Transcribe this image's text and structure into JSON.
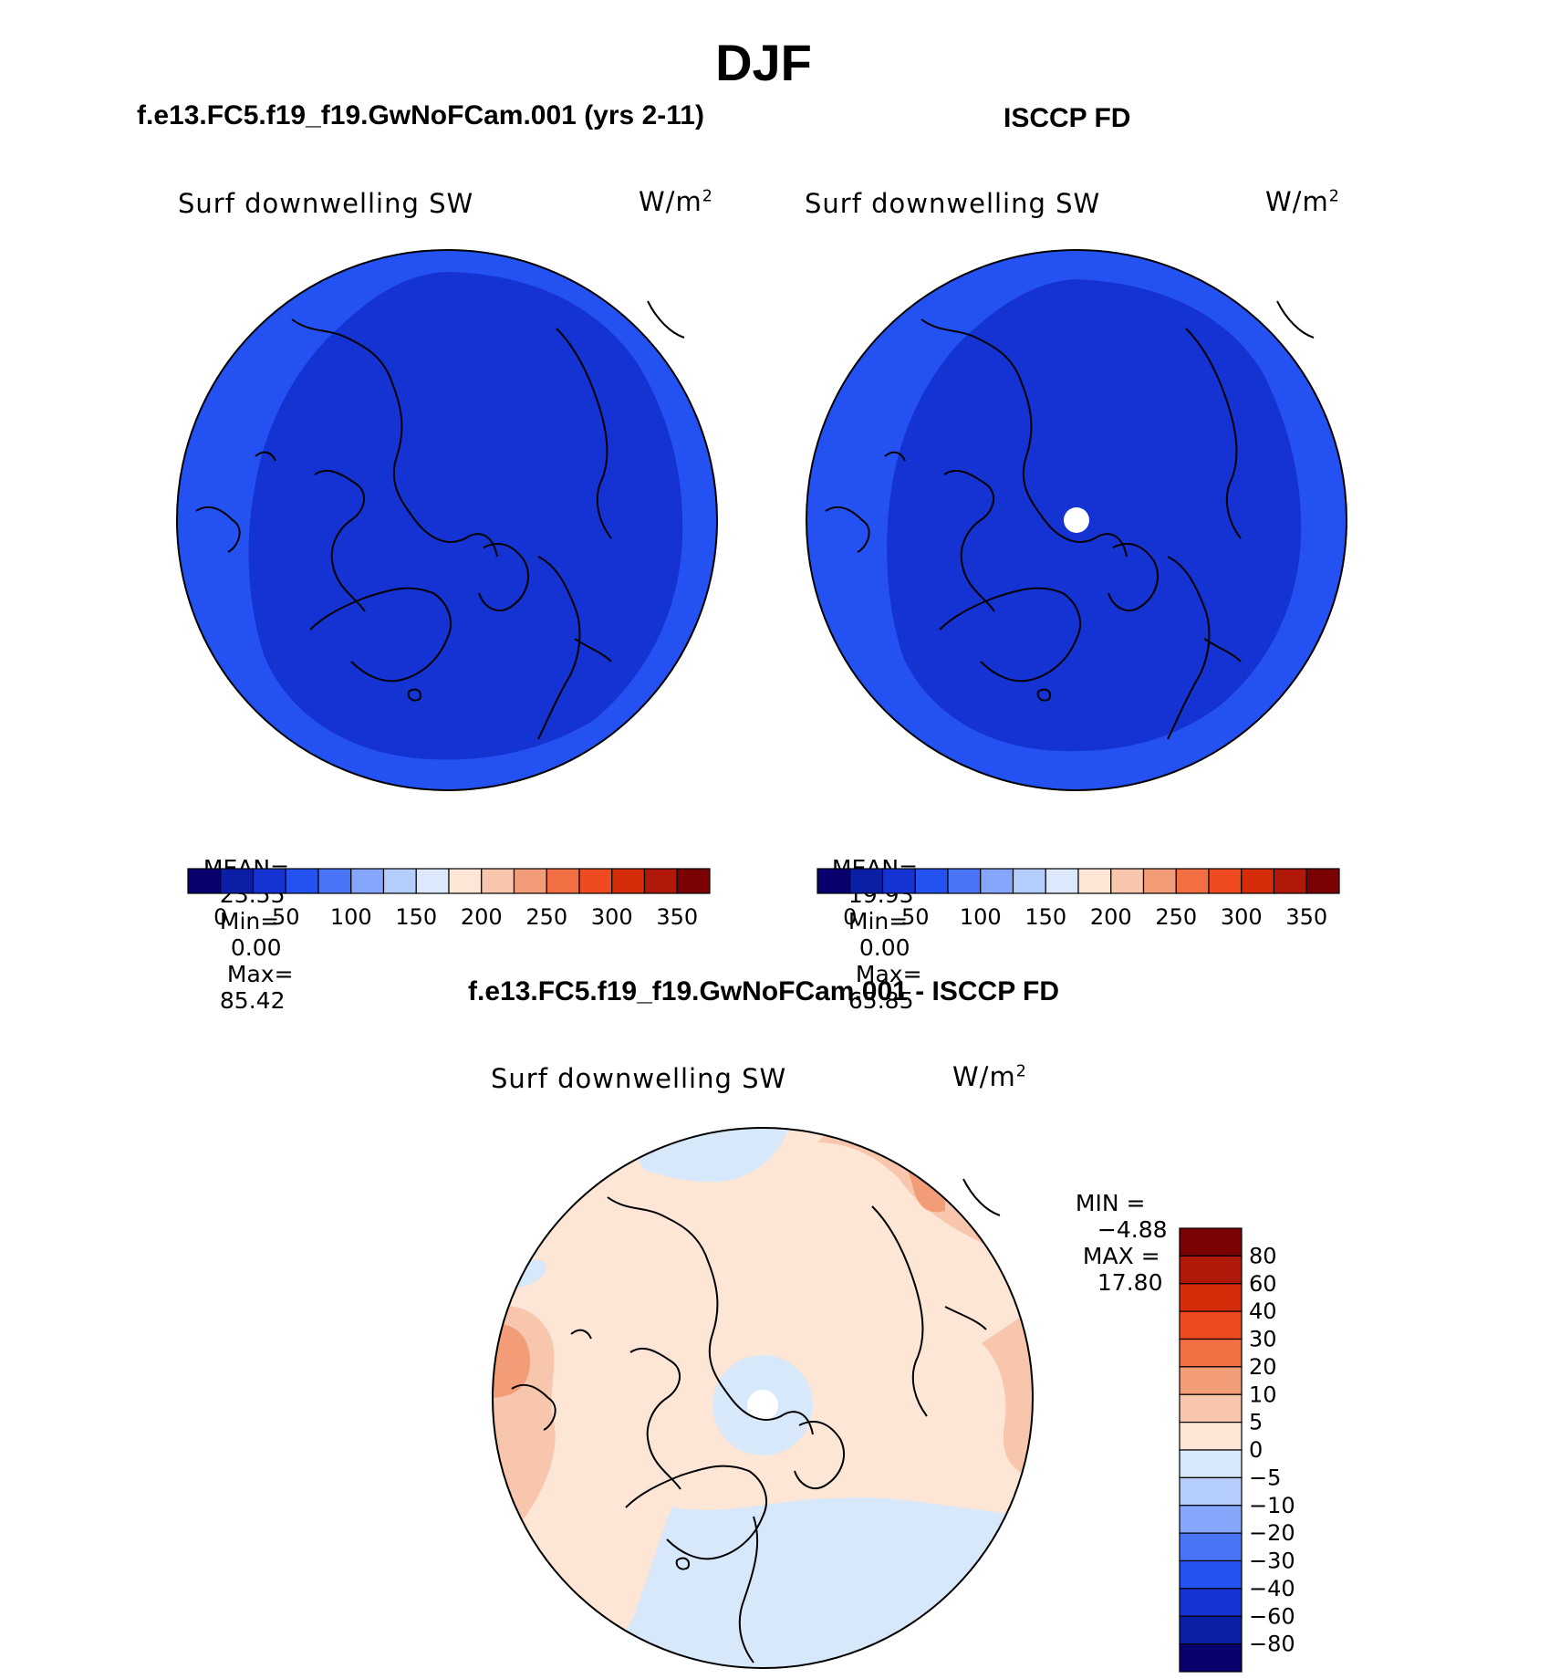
{
  "figure": {
    "season": "DJF",
    "case_title": "f.e13.FC5.f19_f19.GwNoFCam.001 (yrs 2-11)",
    "obs_title": "ISCCP FD",
    "diff_title": "f.e13.FC5.f19_f19.GwNoFCam.001 - ISCCP FD"
  },
  "colors": {
    "abs_colorbar": [
      "#08006e",
      "#0a1ea6",
      "#1533d2",
      "#2452f2",
      "#4a74f8",
      "#85a6fb",
      "#b5cdfc",
      "#dce9fd",
      "#fde6d6",
      "#f8c5ad",
      "#f39c78",
      "#f26f43",
      "#ef4a20",
      "#d52c0a",
      "#b0180a",
      "#7a0202"
    ],
    "diff_colorbar": [
      "#08006e",
      "#0a1ea6",
      "#1533d2",
      "#2452f2",
      "#4a74f8",
      "#85a6fb",
      "#b5cdfc",
      "#d8e8fb",
      "#fde6d6",
      "#f8c5ad",
      "#f39c78",
      "#f26f43",
      "#ef4a20",
      "#d52c0a",
      "#b0180a",
      "#7a0202"
    ]
  },
  "chart_data": [
    {
      "type": "heatmap",
      "title": "f.e13.FC5.f19_f19.GwNoFCam.001 (yrs 2-11)",
      "variable": "Surf downwelling SW",
      "units_base": "W/m",
      "units_exp": "2",
      "stats": {
        "mean_label": "MEAN=",
        "mean": "23.55",
        "min_label": "Min=",
        "min": "0.00",
        "max_label": "Max=",
        "max": "85.42"
      },
      "levels": [
        0,
        25,
        50,
        75,
        100,
        125,
        150,
        175,
        200,
        225,
        250,
        275,
        300,
        325,
        350
      ],
      "tick_labels": [
        "0",
        "50",
        "100",
        "150",
        "200",
        "250",
        "300",
        "350"
      ]
    },
    {
      "type": "heatmap",
      "title": "ISCCP FD",
      "variable": "Surf downwelling SW",
      "units_base": "W/m",
      "units_exp": "2",
      "stats": {
        "mean_label": "MEAN=",
        "mean": "19.93",
        "min_label": "Min=",
        "min": "0.00",
        "max_label": "Max=",
        "max": "65.85"
      },
      "levels": [
        0,
        25,
        50,
        75,
        100,
        125,
        150,
        175,
        200,
        225,
        250,
        275,
        300,
        325,
        350
      ],
      "tick_labels": [
        "0",
        "50",
        "100",
        "150",
        "200",
        "250",
        "300",
        "350"
      ]
    },
    {
      "type": "heatmap",
      "title": "f.e13.FC5.f19_f19.GwNoFCam.001 - ISCCP FD",
      "variable": "Surf downwelling SW",
      "units_base": "W/m",
      "units_exp": "2",
      "stats": {
        "min_label": "MIN =",
        "min": "−4.88",
        "max_label": "MAX =",
        "max": "17.80"
      },
      "levels": [
        -80,
        -60,
        -40,
        -30,
        -20,
        -10,
        -5,
        0,
        5,
        10,
        20,
        30,
        40,
        60,
        80
      ],
      "tick_labels": [
        "80",
        "60",
        "40",
        "30",
        "20",
        "10",
        "5",
        "0",
        "−5",
        "−10",
        "−20",
        "−30",
        "−40",
        "−60",
        "−80"
      ]
    }
  ]
}
